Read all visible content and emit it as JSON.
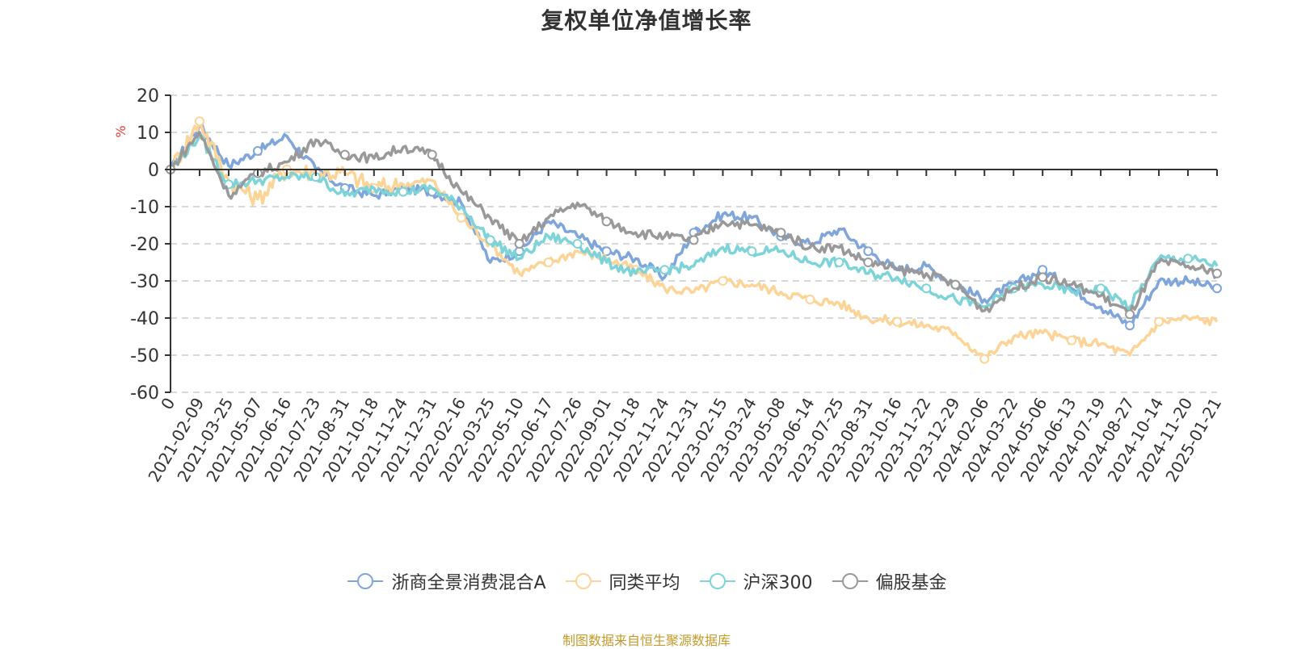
{
  "title": "复权单位净值增长率",
  "source": "制图数据来自恒生聚源数据库",
  "legend": [
    {
      "label": "浙商全景消费混合A",
      "color": "#7fa5db"
    },
    {
      "label": "同类平均",
      "color": "#fdd497"
    },
    {
      "label": "沪深300",
      "color": "#7dd4d8"
    },
    {
      "label": "偏股基金",
      "color": "#999999"
    }
  ],
  "chart_data": {
    "type": "line",
    "title": "复权单位净值增长率",
    "xlabel": "",
    "ylabel": "%",
    "ylim": [
      -60,
      20
    ],
    "yticks": [
      20,
      10,
      0,
      -10,
      -20,
      -30,
      -40,
      -50,
      -60
    ],
    "grid": "horizontal dashed",
    "legend_position": "bottom",
    "categories": [
      "0",
      "2021-02-09",
      "2021-03-25",
      "2021-05-07",
      "2021-06-16",
      "2021-07-23",
      "2021-08-31",
      "2021-10-18",
      "2021-11-24",
      "2021-12-31",
      "2022-02-16",
      "2022-03-25",
      "2022-05-10",
      "2022-06-17",
      "2022-07-26",
      "2022-09-01",
      "2022-10-18",
      "2022-11-24",
      "2022-12-31",
      "2023-02-15",
      "2023-03-24",
      "2023-05-08",
      "2023-06-14",
      "2023-07-25",
      "2023-08-31",
      "2023-10-16",
      "2023-11-22",
      "2023-12-29",
      "2024-02-06",
      "2024-03-22",
      "2024-05-06",
      "2024-06-13",
      "2024-07-19",
      "2024-08-27",
      "2024-10-14",
      "2024-11-20",
      "2025-01-21"
    ],
    "series": [
      {
        "name": "浙商全景消费混合A",
        "color": "#7fa5db",
        "values": [
          0,
          12,
          1,
          5,
          9,
          0,
          -5,
          -7,
          -5,
          -6,
          -9,
          -25,
          -22,
          -14,
          -18,
          -22,
          -24,
          -29,
          -17,
          -12,
          -13,
          -18,
          -20,
          -16,
          -22,
          -27,
          -26,
          -31,
          -35,
          -31,
          -27,
          -32,
          -37,
          -42,
          -30,
          -30,
          -32
        ]
      },
      {
        "name": "同类平均",
        "color": "#fdd497",
        "values": [
          0,
          13,
          -3,
          -8,
          0,
          -1,
          -1,
          -5,
          -4,
          -3,
          -13,
          -20,
          -28,
          -25,
          -22,
          -24,
          -27,
          -32,
          -33,
          -30,
          -31,
          -33,
          -35,
          -36,
          -40,
          -41,
          -42,
          -44,
          -51,
          -45,
          -44,
          -46,
          -47,
          -50,
          -41,
          -40,
          -41
        ]
      },
      {
        "name": "沪深300",
        "color": "#7dd4d8",
        "values": [
          0,
          9,
          -4,
          -3,
          -2,
          -2,
          -7,
          -5,
          -6,
          -5,
          -10,
          -19,
          -24,
          -18,
          -20,
          -25,
          -28,
          -27,
          -26,
          -21,
          -22,
          -22,
          -25,
          -25,
          -28,
          -29,
          -32,
          -35,
          -37,
          -32,
          -31,
          -33,
          -32,
          -37,
          -24,
          -24,
          -26
        ]
      },
      {
        "name": "偏股基金",
        "color": "#999999",
        "values": [
          0,
          10,
          -7,
          -1,
          2,
          8,
          4,
          3,
          6,
          4,
          -6,
          -13,
          -20,
          -13,
          -9,
          -14,
          -17,
          -18,
          -19,
          -14,
          -15,
          -17,
          -21,
          -21,
          -25,
          -27,
          -28,
          -31,
          -38,
          -32,
          -29,
          -31,
          -34,
          -39,
          -25,
          -26,
          -28
        ]
      }
    ]
  }
}
